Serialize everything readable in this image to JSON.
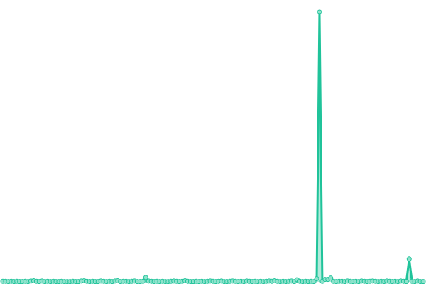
{
  "colors": {
    "line": "#20c39a",
    "fill": "#7fdcc3",
    "point_fill": "#8fe3cc",
    "background": "#ffffff"
  },
  "chart_data": {
    "type": "area",
    "title": "",
    "xlabel": "",
    "ylabel": "",
    "grid": false,
    "legend": "none",
    "ylim": [
      0,
      100
    ],
    "values": [
      0.2,
      0.2,
      0.1,
      0.2,
      0.1,
      0.2,
      0.1,
      0.1,
      0.2,
      0.1,
      0.3,
      0.4,
      0.2,
      0.1,
      0.3,
      0.1,
      0.2,
      0.1,
      0.2,
      0.1,
      0.1,
      0.2,
      0.1,
      0.1,
      0.1,
      0.2,
      0.1,
      0.1,
      0.3,
      0.4,
      0.2,
      0.1,
      0.2,
      0.1,
      0.1,
      0.3,
      0.2,
      0.1,
      0.2,
      0.1,
      0.3,
      0.4,
      0.1,
      0.2,
      0.2,
      0.1,
      0.2,
      0.3,
      0.1,
      0.1,
      0.2,
      1.6,
      0.3,
      0.2,
      0.1,
      0.2,
      0.1,
      0.2,
      0.1,
      0.1,
      0.2,
      0.3,
      0.2,
      0.1,
      0.2,
      0.4,
      0.2,
      0.1,
      0.1,
      0.2,
      0.1,
      0.2,
      0.1,
      0.2,
      0.3,
      0.2,
      0.1,
      0.2,
      0.3,
      0.1,
      0.1,
      0.2,
      0.3,
      0.2,
      0.1,
      0.2,
      0.1,
      0.3,
      0.2,
      0.1,
      0.2,
      0.1,
      0.2,
      0.1,
      0.2,
      0.3,
      0.2,
      0.4,
      0.2,
      0.1,
      0.2,
      0.1,
      0.2,
      0.3,
      0.1,
      0.8,
      0.2,
      0.1,
      0.2,
      0.1,
      0.2,
      0.1,
      1.2,
      100,
      0.2,
      0.9,
      0.9,
      1.4,
      0.2,
      0.1,
      0.2,
      0.2,
      0.1,
      0.3,
      0.2,
      0.1,
      0.2,
      0.1,
      0.3,
      0.2,
      0.1,
      0.2,
      0.3,
      0.2,
      0.1,
      0.2,
      0.1,
      0.3,
      0.2,
      0.1,
      0.2,
      0.1,
      0.3,
      0.2,
      0.1,
      8.5,
      0.2,
      0.1,
      0.3,
      0.1,
      0.1
    ]
  }
}
